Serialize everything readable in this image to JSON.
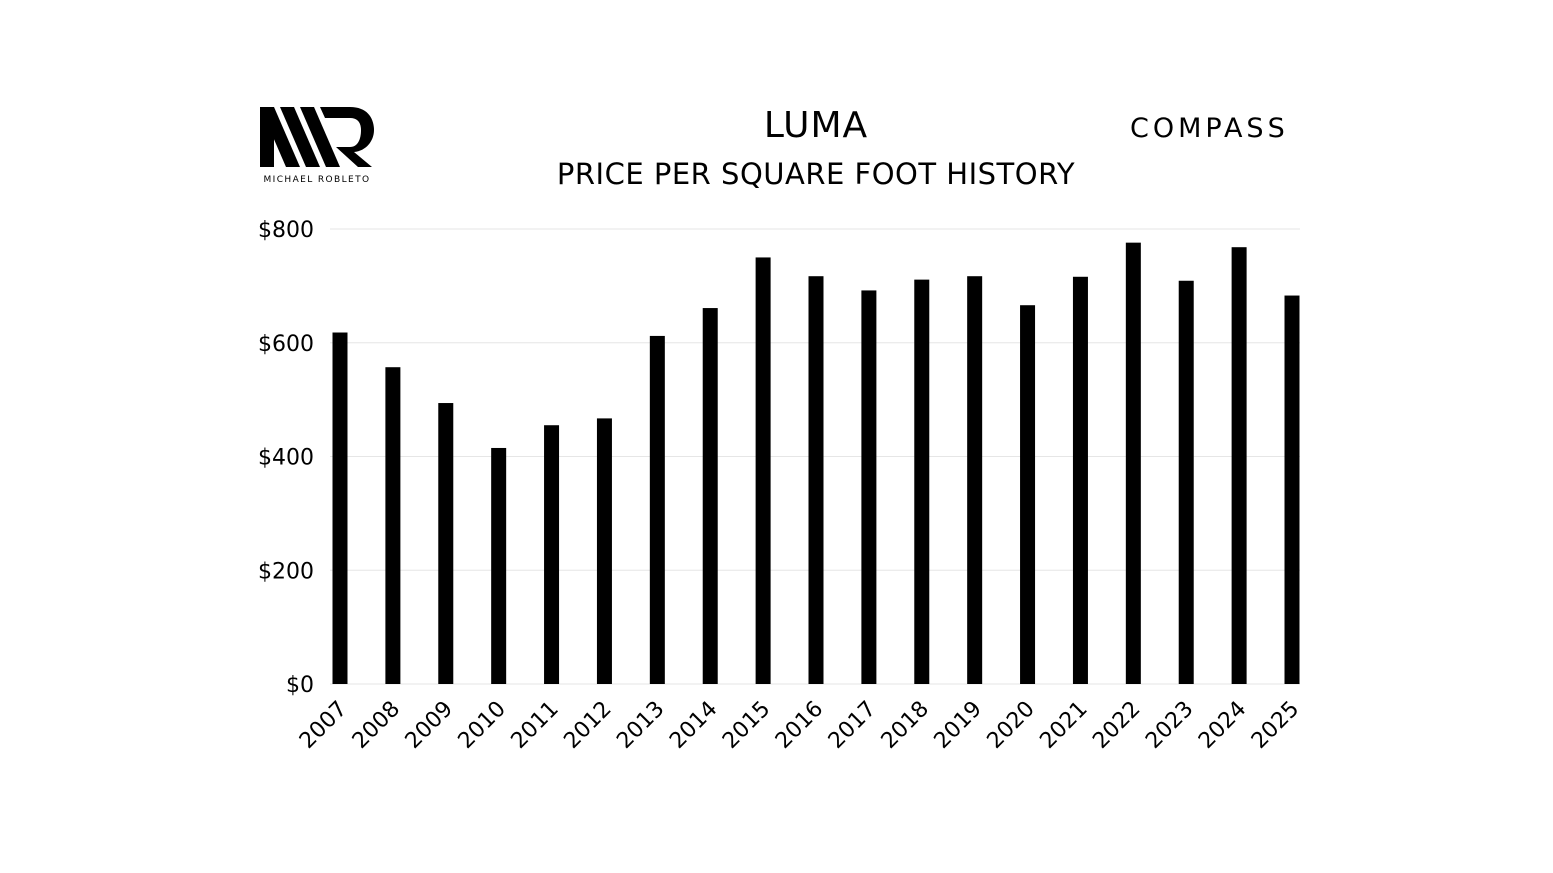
{
  "header": {
    "left_logo_caption": "MICHAEL ROBLETO",
    "title": "LUMA",
    "subtitle": "PRICE PER SQUARE FOOT HISTORY",
    "right_logo_text": "COMPASS"
  },
  "chart_data": {
    "type": "bar",
    "title": "LUMA",
    "subtitle": "PRICE PER SQUARE FOOT HISTORY",
    "xlabel": "",
    "ylabel": "",
    "categories": [
      "2007",
      "2008",
      "2009",
      "2010",
      "2011",
      "2012",
      "2013",
      "2014",
      "2015",
      "2016",
      "2017",
      "2018",
      "2019",
      "2020",
      "2021",
      "2022",
      "2023",
      "2024",
      "2025"
    ],
    "values": [
      618,
      557,
      494,
      415,
      455,
      467,
      612,
      661,
      750,
      717,
      692,
      711,
      717,
      666,
      716,
      776,
      709,
      768,
      683
    ],
    "ylim": [
      0,
      800
    ],
    "yticks": [
      0,
      200,
      400,
      600,
      800
    ],
    "ytick_labels": [
      "$0",
      "$200",
      "$400",
      "$600",
      "$800"
    ],
    "grid": "horizontal",
    "legend": "none",
    "bar_color": "#000000",
    "grid_color": "#e6e6e6"
  }
}
